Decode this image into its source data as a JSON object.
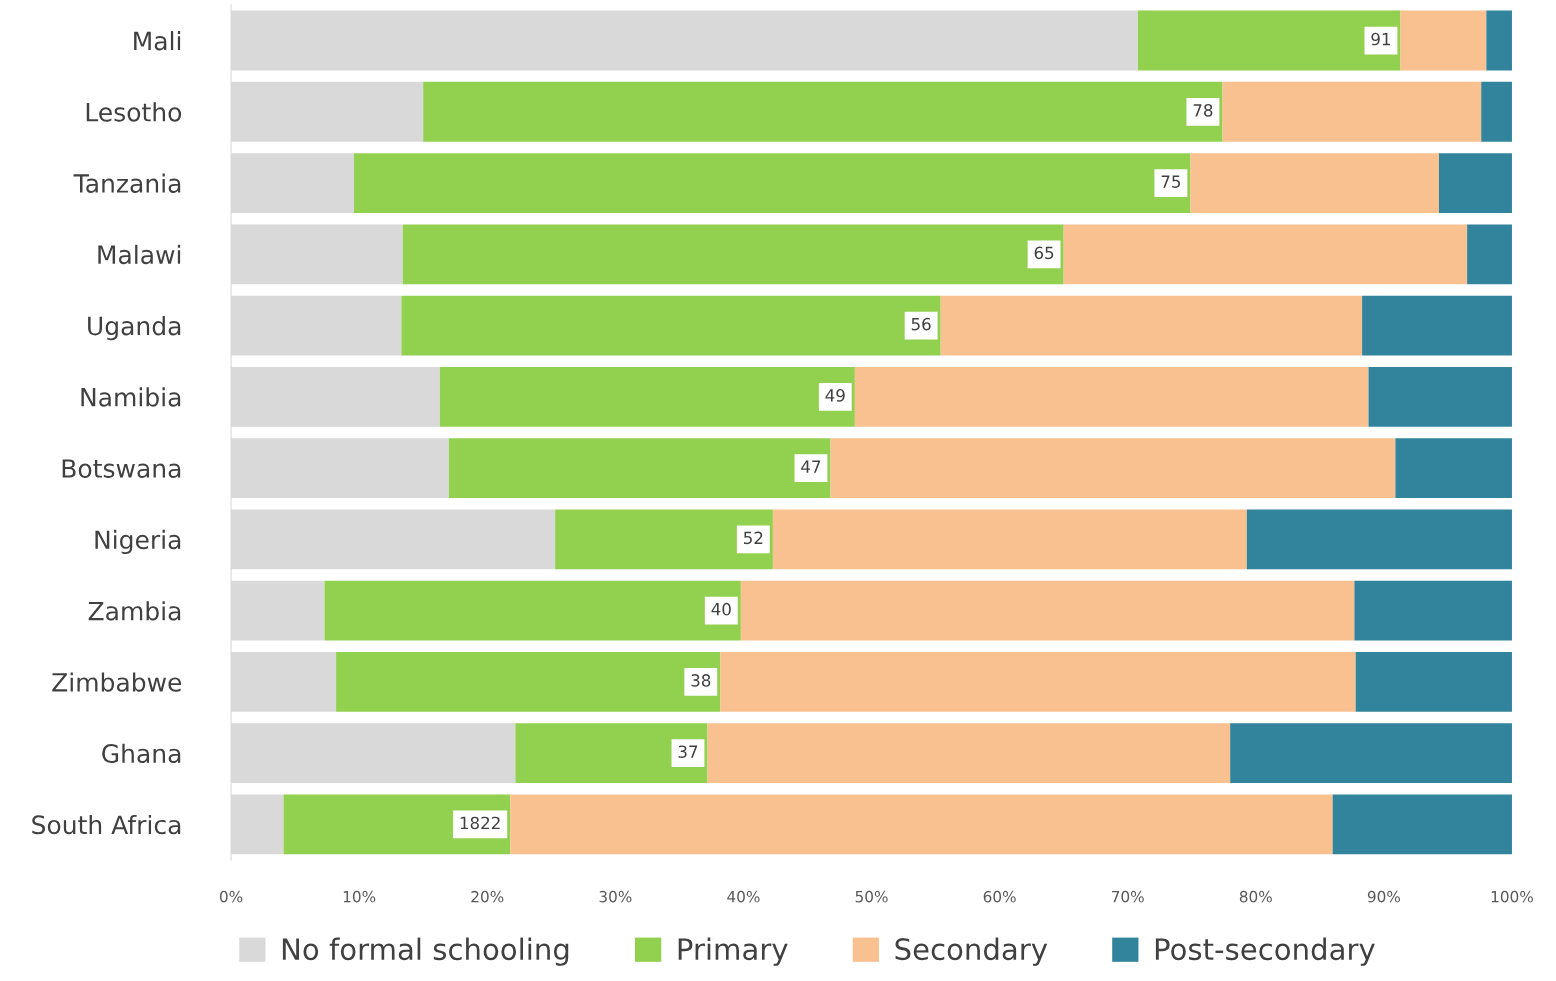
{
  "chart_data": {
    "type": "bar",
    "orientation": "horizontal",
    "stacked": true,
    "categories": [
      "Mali",
      "Lesotho",
      "Tanzania",
      "Malawi",
      "Uganda",
      "Namibia",
      "Botswana",
      "Nigeria",
      "Zambia",
      "Zimbabwe",
      "Ghana",
      "South Africa"
    ],
    "series": [
      {
        "name": "No formal schooling",
        "color": "#d9d9d9",
        "values": [
          70.8,
          15.0,
          9.6,
          13.4,
          13.3,
          16.3,
          17.0,
          25.3,
          7.3,
          8.2,
          22.2,
          4.1
        ]
      },
      {
        "name": "Primary",
        "color": "#92d050",
        "values": [
          20.5,
          62.4,
          65.3,
          51.6,
          42.1,
          32.4,
          29.8,
          17.0,
          32.5,
          30.0,
          15.0,
          17.7
        ]
      },
      {
        "name": "Secondary",
        "color": "#f9c090",
        "values": [
          6.7,
          20.2,
          19.4,
          31.5,
          32.9,
          40.1,
          44.1,
          37.0,
          47.9,
          49.6,
          40.8,
          64.2
        ]
      },
      {
        "name": "Post-secondary",
        "color": "#31849b",
        "values": [
          2.0,
          2.4,
          5.7,
          3.5,
          11.7,
          11.2,
          9.1,
          20.7,
          12.3,
          12.2,
          22.0,
          14.0
        ]
      }
    ],
    "xlim": [
      0,
      100
    ],
    "xticks": [
      {
        "value": 0,
        "label": "0%"
      },
      {
        "value": 10,
        "label": "10%"
      },
      {
        "value": 20,
        "label": "20%"
      },
      {
        "value": 30,
        "label": "30%"
      },
      {
        "value": 40,
        "label": "40%"
      },
      {
        "value": 50,
        "label": "50%"
      },
      {
        "value": 60,
        "label": "60%"
      },
      {
        "value": 70,
        "label": "70%"
      },
      {
        "value": 80,
        "label": "80%"
      },
      {
        "value": 90,
        "label": "90%"
      },
      {
        "value": 100,
        "label": "100%"
      }
    ],
    "annotations": [
      {
        "text": "91",
        "x": 91.3,
        "y": "Mali"
      },
      {
        "text": "78",
        "x": 77.4,
        "y": "Lesotho"
      },
      {
        "text": "75",
        "x": 74.9,
        "y": "Tanzania"
      },
      {
        "text": "65",
        "x": 65.0,
        "y": "Malawi"
      },
      {
        "text": "56",
        "x": 55.4,
        "y": "Uganda"
      },
      {
        "text": "49",
        "x": 48.7,
        "y": "Namibia"
      },
      {
        "text": "47",
        "x": 46.8,
        "y": "Botswana"
      },
      {
        "text": "52",
        "x": 42.3,
        "y": "Nigeria"
      },
      {
        "text": "40",
        "x": 39.8,
        "y": "Zambia"
      },
      {
        "text": "38",
        "x": 38.2,
        "y": "Zimbabwe"
      },
      {
        "text": "37",
        "x": 37.2,
        "y": "Ghana"
      },
      {
        "text": "1822",
        "x": 21.8,
        "y": "South Africa"
      }
    ],
    "grid": false,
    "legend": "bottom"
  }
}
